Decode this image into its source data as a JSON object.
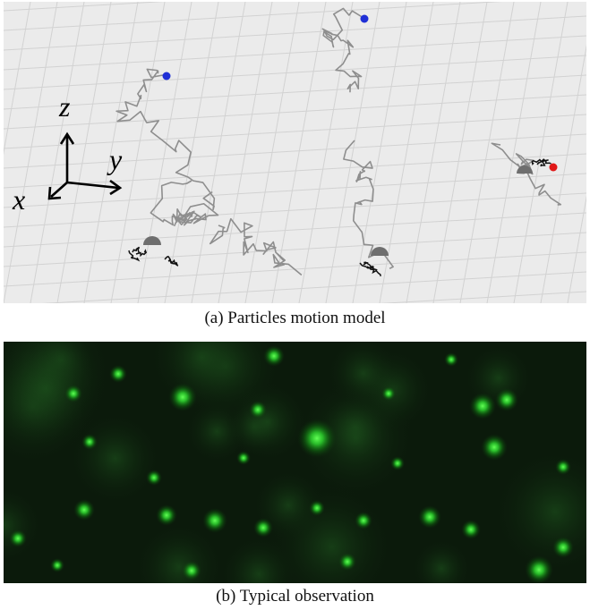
{
  "figure": {
    "panel_a": {
      "caption": "(a) Particles motion model",
      "axis_labels": {
        "z": "z",
        "y": "y",
        "x": "x"
      },
      "colors": {
        "background": "#ebebeb",
        "grid": "#d2d2d2",
        "trajectory": "#8e8e8e",
        "recent_steps": "#111111",
        "dome": "#6e6e6e",
        "start_marker": "#1f2fd6",
        "highlight_marker": "#e01818"
      },
      "trajectories": [
        {
          "name": "trajectory-left",
          "start_marker": "blue"
        },
        {
          "name": "trajectory-middle",
          "start_marker": "blue"
        },
        {
          "name": "trajectory-right",
          "start_marker": "red"
        }
      ]
    },
    "panel_b": {
      "caption": "(b) Typical observation",
      "colors": {
        "background": "#0b1a0b",
        "spot": "#3dff3d"
      }
    }
  }
}
